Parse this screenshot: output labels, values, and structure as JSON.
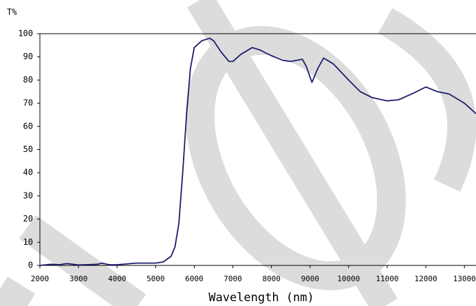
{
  "chart_data": {
    "type": "line",
    "ylabel": "T%",
    "xlabel": "Wavelength (nm)",
    "x": [
      2000,
      2300,
      2500,
      2700,
      3000,
      3500,
      3600,
      3800,
      4000,
      4500,
      5000,
      5200,
      5400,
      5500,
      5600,
      5700,
      5800,
      5900,
      6000,
      6200,
      6400,
      6500,
      6700,
      6900,
      7000,
      7200,
      7500,
      7700,
      8000,
      8300,
      8500,
      8800,
      8900,
      9050,
      9200,
      9350,
      9600,
      10000,
      10300,
      10600,
      11000,
      11300,
      11700,
      12000,
      12300,
      12600,
      13000,
      13300
    ],
    "series": [
      {
        "color": "#1c1c6e",
        "values": [
          0,
          0.5,
          0.3,
          0.8,
          0.2,
          0.5,
          1,
          0.3,
          0.3,
          1,
          1,
          1.5,
          4,
          8,
          18,
          40,
          65,
          85,
          94,
          97,
          98,
          97,
          92,
          88,
          88,
          91,
          94,
          93,
          90.5,
          88.5,
          88,
          89,
          86,
          79,
          85,
          89.5,
          87,
          80,
          75,
          72.5,
          71,
          71.5,
          74.5,
          77,
          75,
          74,
          70,
          65.5
        ]
      }
    ],
    "xlim": [
      2000,
      13300
    ],
    "ylim": [
      0,
      100
    ],
    "xticks": [
      2000,
      3000,
      4000,
      5000,
      6000,
      7000,
      8000,
      9000,
      10000,
      11000,
      12000,
      13000
    ],
    "yticks": [
      0,
      10,
      20,
      30,
      40,
      50,
      60,
      70,
      80,
      90,
      100
    ]
  }
}
